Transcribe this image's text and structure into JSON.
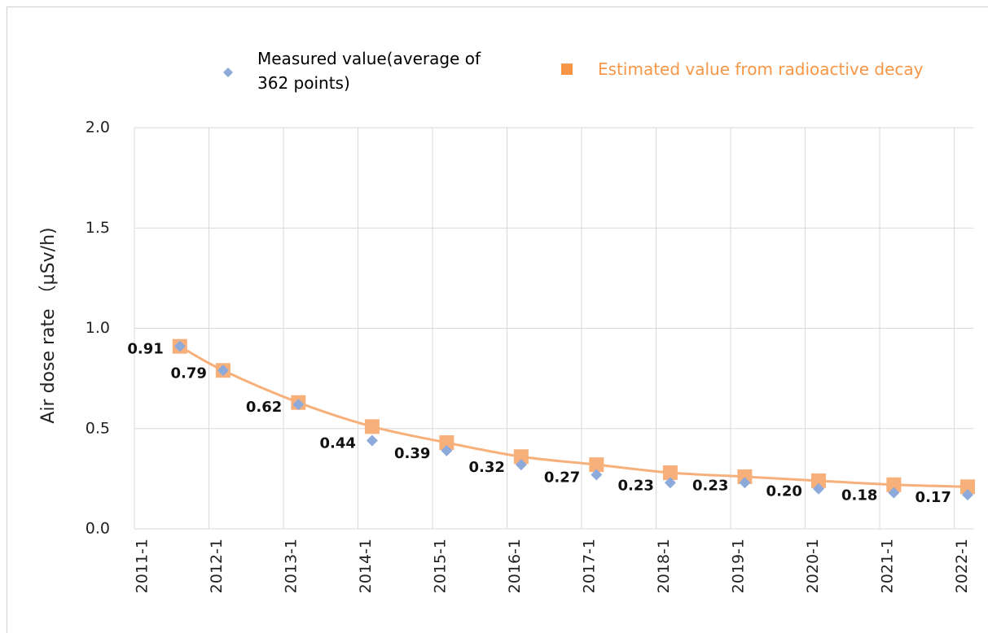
{
  "chart_data": {
    "type": "scatter-line",
    "y_label": "Air dose rate （µSv/h)",
    "x": [
      2011.61,
      2012.19,
      2013.2,
      2014.19,
      2015.19,
      2016.19,
      2017.2,
      2018.19,
      2019.19,
      2020.18,
      2021.19,
      2022.18
    ],
    "xlim": [
      2011,
      2022.26
    ],
    "xticks": [
      {
        "value": 2011,
        "label": "2011-1"
      },
      {
        "value": 2012,
        "label": "2012-1"
      },
      {
        "value": 2013,
        "label": "2013-1"
      },
      {
        "value": 2014,
        "label": "2014-1"
      },
      {
        "value": 2015,
        "label": "2015-1"
      },
      {
        "value": 2016,
        "label": "2016-1"
      },
      {
        "value": 2017,
        "label": "2017-1"
      },
      {
        "value": 2018,
        "label": "2018-1"
      },
      {
        "value": 2019,
        "label": "2019-1"
      },
      {
        "value": 2020,
        "label": "2020-1"
      },
      {
        "value": 2021,
        "label": "2021-1"
      },
      {
        "value": 2022,
        "label": "2022-1"
      }
    ],
    "ylim": [
      0,
      2
    ],
    "yticks": [
      {
        "value": 0,
        "label": "0.0"
      },
      {
        "value": 0.5,
        "label": "0.5"
      },
      {
        "value": 1,
        "label": "1.0"
      },
      {
        "value": 1.5,
        "label": "1.5"
      },
      {
        "value": 2,
        "label": "2.0"
      }
    ],
    "grid": true,
    "series": [
      {
        "name": "Measured value(average of 362 points)",
        "color": "#8eaadb",
        "marker": "diamond",
        "values": [
          0.91,
          0.79,
          0.62,
          0.44,
          0.39,
          0.32,
          0.27,
          0.23,
          0.23,
          0.2,
          0.18,
          0.17
        ],
        "value_labels": [
          "0.91",
          "0.79",
          "0.62",
          "0.44",
          "0.39",
          "0.32",
          "0.27",
          "0.23",
          "0.23",
          "0.20",
          "0.18",
          "0.17"
        ]
      },
      {
        "name": "Estimated value from radioactive decay",
        "color": "#f7b07a",
        "marker": "square-line",
        "values": [
          0.91,
          0.79,
          0.63,
          0.51,
          0.43,
          0.36,
          0.32,
          0.28,
          0.26,
          0.24,
          0.22,
          0.21
        ]
      }
    ]
  }
}
